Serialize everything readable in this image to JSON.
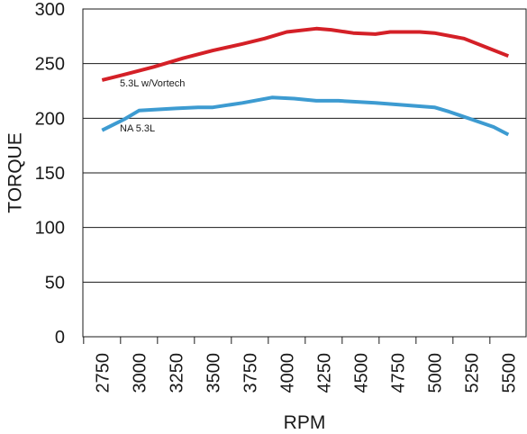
{
  "chart_data": {
    "type": "line",
    "title": "",
    "xlabel": "RPM",
    "ylabel": "TORQUE",
    "ylim": [
      0,
      300
    ],
    "xlim": [
      2620,
      5620
    ],
    "yticks": [
      0,
      50,
      100,
      150,
      200,
      250,
      300
    ],
    "xticks": [
      2750,
      3000,
      3250,
      3500,
      3750,
      4000,
      4250,
      4500,
      4750,
      5000,
      5250,
      5500
    ],
    "grid": "horizontal",
    "legend": "inline labels",
    "series": [
      {
        "name": "5.3L w/Vortech",
        "color": "#d42027",
        "x": [
          2750,
          2900,
          3100,
          3300,
          3500,
          3700,
          3850,
          4000,
          4200,
          4300,
          4450,
          4600,
          4700,
          4900,
          5000,
          5200,
          5350,
          5500
        ],
        "y": [
          235,
          240,
          247,
          255,
          262,
          268,
          273,
          279,
          282,
          281,
          278,
          277,
          279,
          279,
          278,
          273,
          265,
          257
        ]
      },
      {
        "name": "NA 5.3L",
        "color": "#3d9bd1",
        "x": [
          2750,
          2900,
          3000,
          3250,
          3400,
          3500,
          3700,
          3900,
          4050,
          4200,
          4350,
          4600,
          4800,
          5000,
          5100,
          5250,
          5400,
          5500
        ],
        "y": [
          189,
          199,
          207,
          209,
          210,
          210,
          214,
          219,
          218,
          216,
          216,
          214,
          212,
          210,
          206,
          199,
          192,
          185
        ]
      }
    ]
  }
}
